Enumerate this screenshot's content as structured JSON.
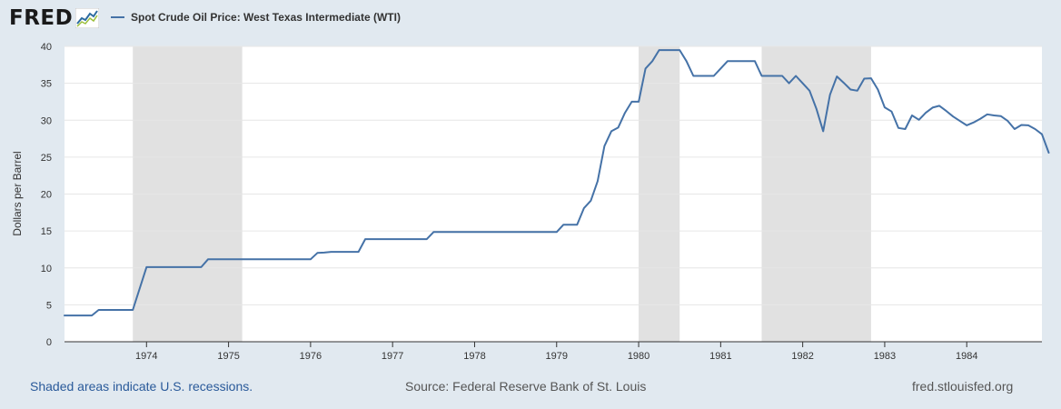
{
  "header": {
    "logo_text": "FRED",
    "logo_icon": "chart-line-icon"
  },
  "chart_data": {
    "type": "line",
    "title": "",
    "xlabel": "",
    "ylabel": "Dollars per Barrel",
    "ylim": [
      0,
      40
    ],
    "xlim": [
      "1973-01",
      "1984-12"
    ],
    "grid": true,
    "legend_placement": "top-left",
    "y_ticks": [
      "0",
      "5",
      "10",
      "15",
      "20",
      "25",
      "30",
      "35",
      "40"
    ],
    "x_ticks": [
      "1974",
      "1975",
      "1976",
      "1977",
      "1978",
      "1979",
      "1980",
      "1981",
      "1982",
      "1983",
      "1984"
    ],
    "series": [
      {
        "name": "Spot Crude Oil Price: West Texas Intermediate (WTI)",
        "color": "#4572a7",
        "points": [
          [
            "1973-01",
            3.56
          ],
          [
            "1973-02",
            3.56
          ],
          [
            "1973-03",
            3.56
          ],
          [
            "1973-04",
            3.56
          ],
          [
            "1973-05",
            3.56
          ],
          [
            "1973-06",
            4.31
          ],
          [
            "1973-07",
            4.31
          ],
          [
            "1973-08",
            4.31
          ],
          [
            "1973-09",
            4.31
          ],
          [
            "1973-10",
            4.31
          ],
          [
            "1973-11",
            4.31
          ],
          [
            "1974-01",
            10.11
          ],
          [
            "1974-02",
            10.11
          ],
          [
            "1974-03",
            10.11
          ],
          [
            "1974-04",
            10.11
          ],
          [
            "1974-05",
            10.11
          ],
          [
            "1974-06",
            10.11
          ],
          [
            "1974-07",
            10.11
          ],
          [
            "1974-08",
            10.11
          ],
          [
            "1974-09",
            10.11
          ],
          [
            "1974-10",
            11.16
          ],
          [
            "1974-11",
            11.16
          ],
          [
            "1974-12",
            11.16
          ],
          [
            "1975-01",
            11.16
          ],
          [
            "1975-06",
            11.16
          ],
          [
            "1975-12",
            11.16
          ],
          [
            "1976-01",
            11.16
          ],
          [
            "1976-02",
            12.03
          ],
          [
            "1976-03",
            12.08
          ],
          [
            "1976-04",
            12.17
          ],
          [
            "1976-06",
            12.17
          ],
          [
            "1976-08",
            12.17
          ],
          [
            "1976-09",
            13.9
          ],
          [
            "1976-12",
            13.9
          ],
          [
            "1977-03",
            13.9
          ],
          [
            "1977-06",
            13.9
          ],
          [
            "1977-07",
            14.85
          ],
          [
            "1977-12",
            14.85
          ],
          [
            "1978-06",
            14.85
          ],
          [
            "1978-12",
            14.85
          ],
          [
            "1979-01",
            14.85
          ],
          [
            "1979-02",
            15.85
          ],
          [
            "1979-03",
            15.85
          ],
          [
            "1979-04",
            15.85
          ],
          [
            "1979-05",
            18.1
          ],
          [
            "1979-06",
            19.1
          ],
          [
            "1979-07",
            21.75
          ],
          [
            "1979-08",
            26.5
          ],
          [
            "1979-09",
            28.5
          ],
          [
            "1979-10",
            29.0
          ],
          [
            "1979-11",
            31.0
          ],
          [
            "1979-12",
            32.5
          ],
          [
            "1980-01",
            32.5
          ],
          [
            "1980-02",
            37.0
          ],
          [
            "1980-03",
            38.0
          ],
          [
            "1980-04",
            39.5
          ],
          [
            "1980-05",
            39.5
          ],
          [
            "1980-06",
            39.5
          ],
          [
            "1980-07",
            39.5
          ],
          [
            "1980-08",
            38.0
          ],
          [
            "1980-09",
            36.0
          ],
          [
            "1980-10",
            36.0
          ],
          [
            "1980-11",
            36.0
          ],
          [
            "1980-12",
            36.0
          ],
          [
            "1981-01",
            37.0
          ],
          [
            "1981-02",
            38.0
          ],
          [
            "1981-03",
            38.0
          ],
          [
            "1981-04",
            38.0
          ],
          [
            "1981-05",
            38.0
          ],
          [
            "1981-06",
            38.0
          ],
          [
            "1981-07",
            36.0
          ],
          [
            "1981-08",
            36.0
          ],
          [
            "1981-09",
            36.0
          ],
          [
            "1981-10",
            36.0
          ],
          [
            "1981-11",
            35.0
          ],
          [
            "1981-12",
            36.0
          ],
          [
            "1982-01",
            35.0
          ],
          [
            "1982-02",
            34.0
          ],
          [
            "1982-03",
            31.56
          ],
          [
            "1982-04",
            28.5
          ],
          [
            "1982-05",
            33.45
          ],
          [
            "1982-06",
            35.93
          ],
          [
            "1982-07",
            35.07
          ],
          [
            "1982-08",
            34.16
          ],
          [
            "1982-09",
            34.0
          ],
          [
            "1982-10",
            35.63
          ],
          [
            "1982-11",
            35.68
          ],
          [
            "1982-12",
            34.15
          ],
          [
            "1983-01",
            31.74
          ],
          [
            "1983-02",
            31.17
          ],
          [
            "1983-03",
            28.95
          ],
          [
            "1983-04",
            28.8
          ],
          [
            "1983-05",
            30.65
          ],
          [
            "1983-06",
            30.05
          ],
          [
            "1983-07",
            31.0
          ],
          [
            "1983-08",
            31.7
          ],
          [
            "1983-09",
            31.95
          ],
          [
            "1983-10",
            31.25
          ],
          [
            "1983-11",
            30.5
          ],
          [
            "1983-12",
            29.9
          ],
          [
            "1984-01",
            29.3
          ],
          [
            "1984-02",
            29.7
          ],
          [
            "1984-03",
            30.2
          ],
          [
            "1984-04",
            30.8
          ],
          [
            "1984-05",
            30.65
          ],
          [
            "1984-06",
            30.55
          ],
          [
            "1984-07",
            29.9
          ],
          [
            "1984-08",
            28.8
          ],
          [
            "1984-09",
            29.35
          ],
          [
            "1984-10",
            29.3
          ],
          [
            "1984-11",
            28.8
          ],
          [
            "1984-12",
            28.1
          ],
          [
            "1985-01",
            25.6
          ]
        ]
      }
    ],
    "recessions": [
      [
        "1973-11",
        "1975-03"
      ],
      [
        "1980-01",
        "1980-07"
      ],
      [
        "1981-07",
        "1982-11"
      ]
    ]
  },
  "footer": {
    "note": "Shaded areas indicate U.S. recessions.",
    "source": "Source: Federal Reserve Bank of St. Louis",
    "site": "fred.stlouisfed.org"
  }
}
